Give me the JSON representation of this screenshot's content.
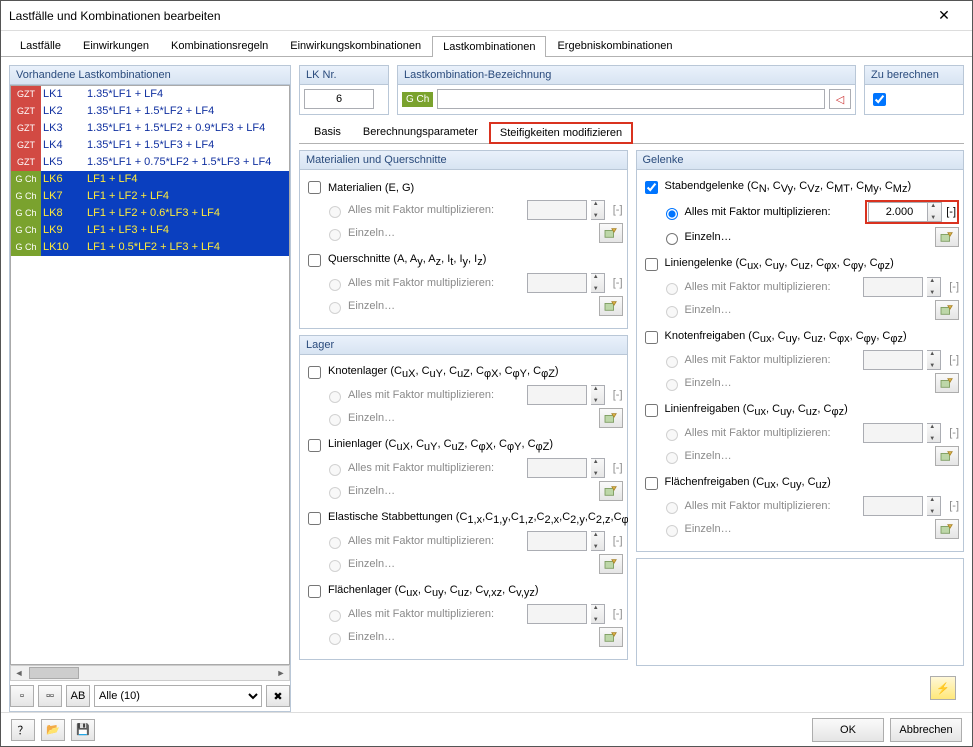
{
  "window": {
    "title": "Lastfälle und Kombinationen bearbeiten"
  },
  "mainTabs": {
    "items": [
      "Lastfälle",
      "Einwirkungen",
      "Kombinationsregeln",
      "Einwirkungskombinationen",
      "Lastkombinationen",
      "Ergebniskombinationen"
    ],
    "active": 4
  },
  "leftPanel": {
    "title": "Vorhandene Lastkombinationen",
    "rows": [
      {
        "tag": "GZT",
        "tagClass": "gzt",
        "name": "LK1",
        "desc": "1.35*LF1 + LF4",
        "sel": false
      },
      {
        "tag": "GZT",
        "tagClass": "gzt",
        "name": "LK2",
        "desc": "1.35*LF1 + 1.5*LF2 + LF4",
        "sel": false
      },
      {
        "tag": "GZT",
        "tagClass": "gzt",
        "name": "LK3",
        "desc": "1.35*LF1 + 1.5*LF2 + 0.9*LF3 + LF4",
        "sel": false
      },
      {
        "tag": "GZT",
        "tagClass": "gzt",
        "name": "LK4",
        "desc": "1.35*LF1 + 1.5*LF3 + LF4",
        "sel": false
      },
      {
        "tag": "GZT",
        "tagClass": "gzt",
        "name": "LK5",
        "desc": "1.35*LF1 + 0.75*LF2 + 1.5*LF3 + LF4",
        "sel": false
      },
      {
        "tag": "G Ch",
        "tagClass": "gch",
        "name": "LK6",
        "desc": "LF1 + LF4",
        "sel": true
      },
      {
        "tag": "G Ch",
        "tagClass": "gch",
        "name": "LK7",
        "desc": "LF1 + LF2 + LF4",
        "sel": true
      },
      {
        "tag": "G Ch",
        "tagClass": "gch",
        "name": "LK8",
        "desc": "LF1 + LF2 + 0.6*LF3 + LF4",
        "sel": true
      },
      {
        "tag": "G Ch",
        "tagClass": "gch",
        "name": "LK9",
        "desc": "LF1 + LF3 + LF4",
        "sel": true
      },
      {
        "tag": "G Ch",
        "tagClass": "gch",
        "name": "LK10",
        "desc": "LF1 + 0.5*LF2 + LF3 + LF4",
        "sel": true
      }
    ],
    "filter": "Alle (10)"
  },
  "header": {
    "lknr": {
      "label": "LK Nr.",
      "value": "6"
    },
    "bez": {
      "label": "Lastkombination-Bezeichnung",
      "tag": "G Ch",
      "value": ""
    },
    "calc": {
      "label": "Zu berechnen",
      "checked": true
    }
  },
  "subTabs": {
    "items": [
      "Basis",
      "Berechnungsparameter",
      "Steifigkeiten modifizieren"
    ],
    "active": 2,
    "highlight": 2
  },
  "labels": {
    "allesFaktor": "Alles mit Faktor multiplizieren:",
    "einzeln": "Einzeln…",
    "unit": "[-]"
  },
  "leftCol": {
    "mat": {
      "title": "Materialien und Querschnitte",
      "items": [
        {
          "label": "Materialien (E, G)",
          "checked": false
        },
        {
          "label": "Querschnitte (A, A<sub>y</sub>, A<sub>z</sub>, I<sub>t</sub>, I<sub>y</sub>, I<sub>z</sub>)",
          "checked": false
        }
      ]
    },
    "lager": {
      "title": "Lager",
      "items": [
        {
          "label": "Knotenlager (C<sub>uX</sub>, C<sub>uY</sub>, C<sub>uZ</sub>, C<sub>φX</sub>, C<sub>φY</sub>, C<sub>φZ</sub>)",
          "checked": false
        },
        {
          "label": "Linienlager (C<sub>uX</sub>, C<sub>uY</sub>, C<sub>uZ</sub>, C<sub>φX</sub>, C<sub>φY</sub>, C<sub>φZ</sub>)",
          "checked": false
        },
        {
          "label": "Elastische Stabbettungen (C<sub>1,x</sub>,C<sub>1,y</sub>,C<sub>1,z</sub>,C<sub>2,x</sub>,C<sub>2,y</sub>,C<sub>2,z</sub>,C<sub>φ</sub>)",
          "checked": false
        },
        {
          "label": "Flächenlager (C<sub>ux</sub>, C<sub>uy</sub>, C<sub>uz</sub>, C<sub>v,xz</sub>, C<sub>v,yz</sub>)",
          "checked": false
        }
      ]
    }
  },
  "rightCol": {
    "gelenke": {
      "title": "Gelenke",
      "items": [
        {
          "label": "Stabendgelenke (C<sub>N</sub>, C<sub>Vy</sub>, C<sub>Vz</sub>, C<sub>MT</sub>, C<sub>My</sub>, C<sub>Mz</sub>)",
          "checked": true,
          "value": "2.000",
          "highlight": true
        },
        {
          "label": "Liniengelenke (C<sub>ux</sub>, C<sub>uy</sub>, C<sub>uz</sub>, C<sub>φx</sub>, C<sub>φy</sub>, C<sub>φz</sub>)",
          "checked": false
        },
        {
          "label": "Knotenfreigaben (C<sub>ux</sub>, C<sub>uy</sub>, C<sub>uz</sub>, C<sub>φx</sub>, C<sub>φy</sub>, C<sub>φz</sub>)",
          "checked": false
        },
        {
          "label": "Linienfreigaben (C<sub>ux</sub>, C<sub>uy</sub>, C<sub>uz</sub>, C<sub>φz</sub>)",
          "checked": false
        },
        {
          "label": "Flächenfreigaben (C<sub>ux</sub>, C<sub>uy</sub>, C<sub>uz</sub>)",
          "checked": false
        }
      ]
    }
  },
  "footer": {
    "ok": "OK",
    "cancel": "Abbrechen"
  },
  "colors": {
    "groupHeader": "#d8e4f2",
    "selection": "#0a3fbf",
    "highlightBorder": "#d9321f",
    "gztTag": "#d24a43",
    "gchTag": "#7aa22e"
  }
}
